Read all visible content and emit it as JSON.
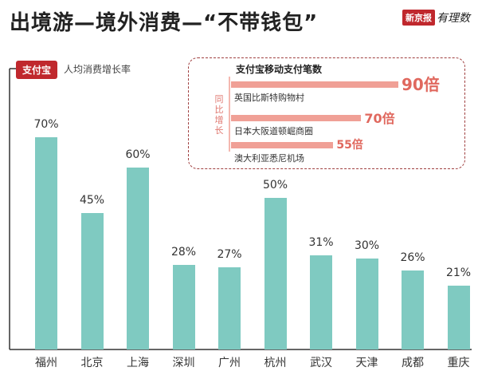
{
  "header": {
    "title": "出境游—境外消费—“不带钱包”",
    "brand_badge": "新京报",
    "brand_script": "有理数"
  },
  "legend": {
    "tag": "支付宝",
    "text": "人均消费增长率"
  },
  "colors": {
    "main_bar": "#7fcac1",
    "inset_bar": "#f0a096",
    "accent_red": "#c0282d",
    "inset_value": "#e0685e"
  },
  "chart_data": [
    {
      "type": "bar",
      "title": "",
      "xlabel": "",
      "ylabel": "人均消费增长率",
      "categories": [
        "福州",
        "北京",
        "上海",
        "深圳",
        "广州",
        "杭州",
        "武汉",
        "天津",
        "成都",
        "重庆"
      ],
      "values": [
        70,
        45,
        60,
        28,
        27,
        50,
        31,
        30,
        26,
        21
      ],
      "value_labels": [
        "70%",
        "45%",
        "60%",
        "28%",
        "27%",
        "50%",
        "31%",
        "30%",
        "26%",
        "21%"
      ],
      "ylim": [
        0,
        80
      ],
      "grid": false,
      "legend_position": "top-left"
    },
    {
      "type": "bar",
      "orientation": "horizontal",
      "title": "支付宝移动支付笔数",
      "ylabel": "同比增长",
      "categories": [
        "英国比斯特购物村",
        "日本大阪道顿崛商圈",
        "澳大利亚悉尼机场"
      ],
      "values": [
        90,
        70,
        55
      ],
      "value_labels": [
        "90倍",
        "70倍",
        "55倍"
      ],
      "xlim": [
        0,
        90
      ]
    }
  ]
}
